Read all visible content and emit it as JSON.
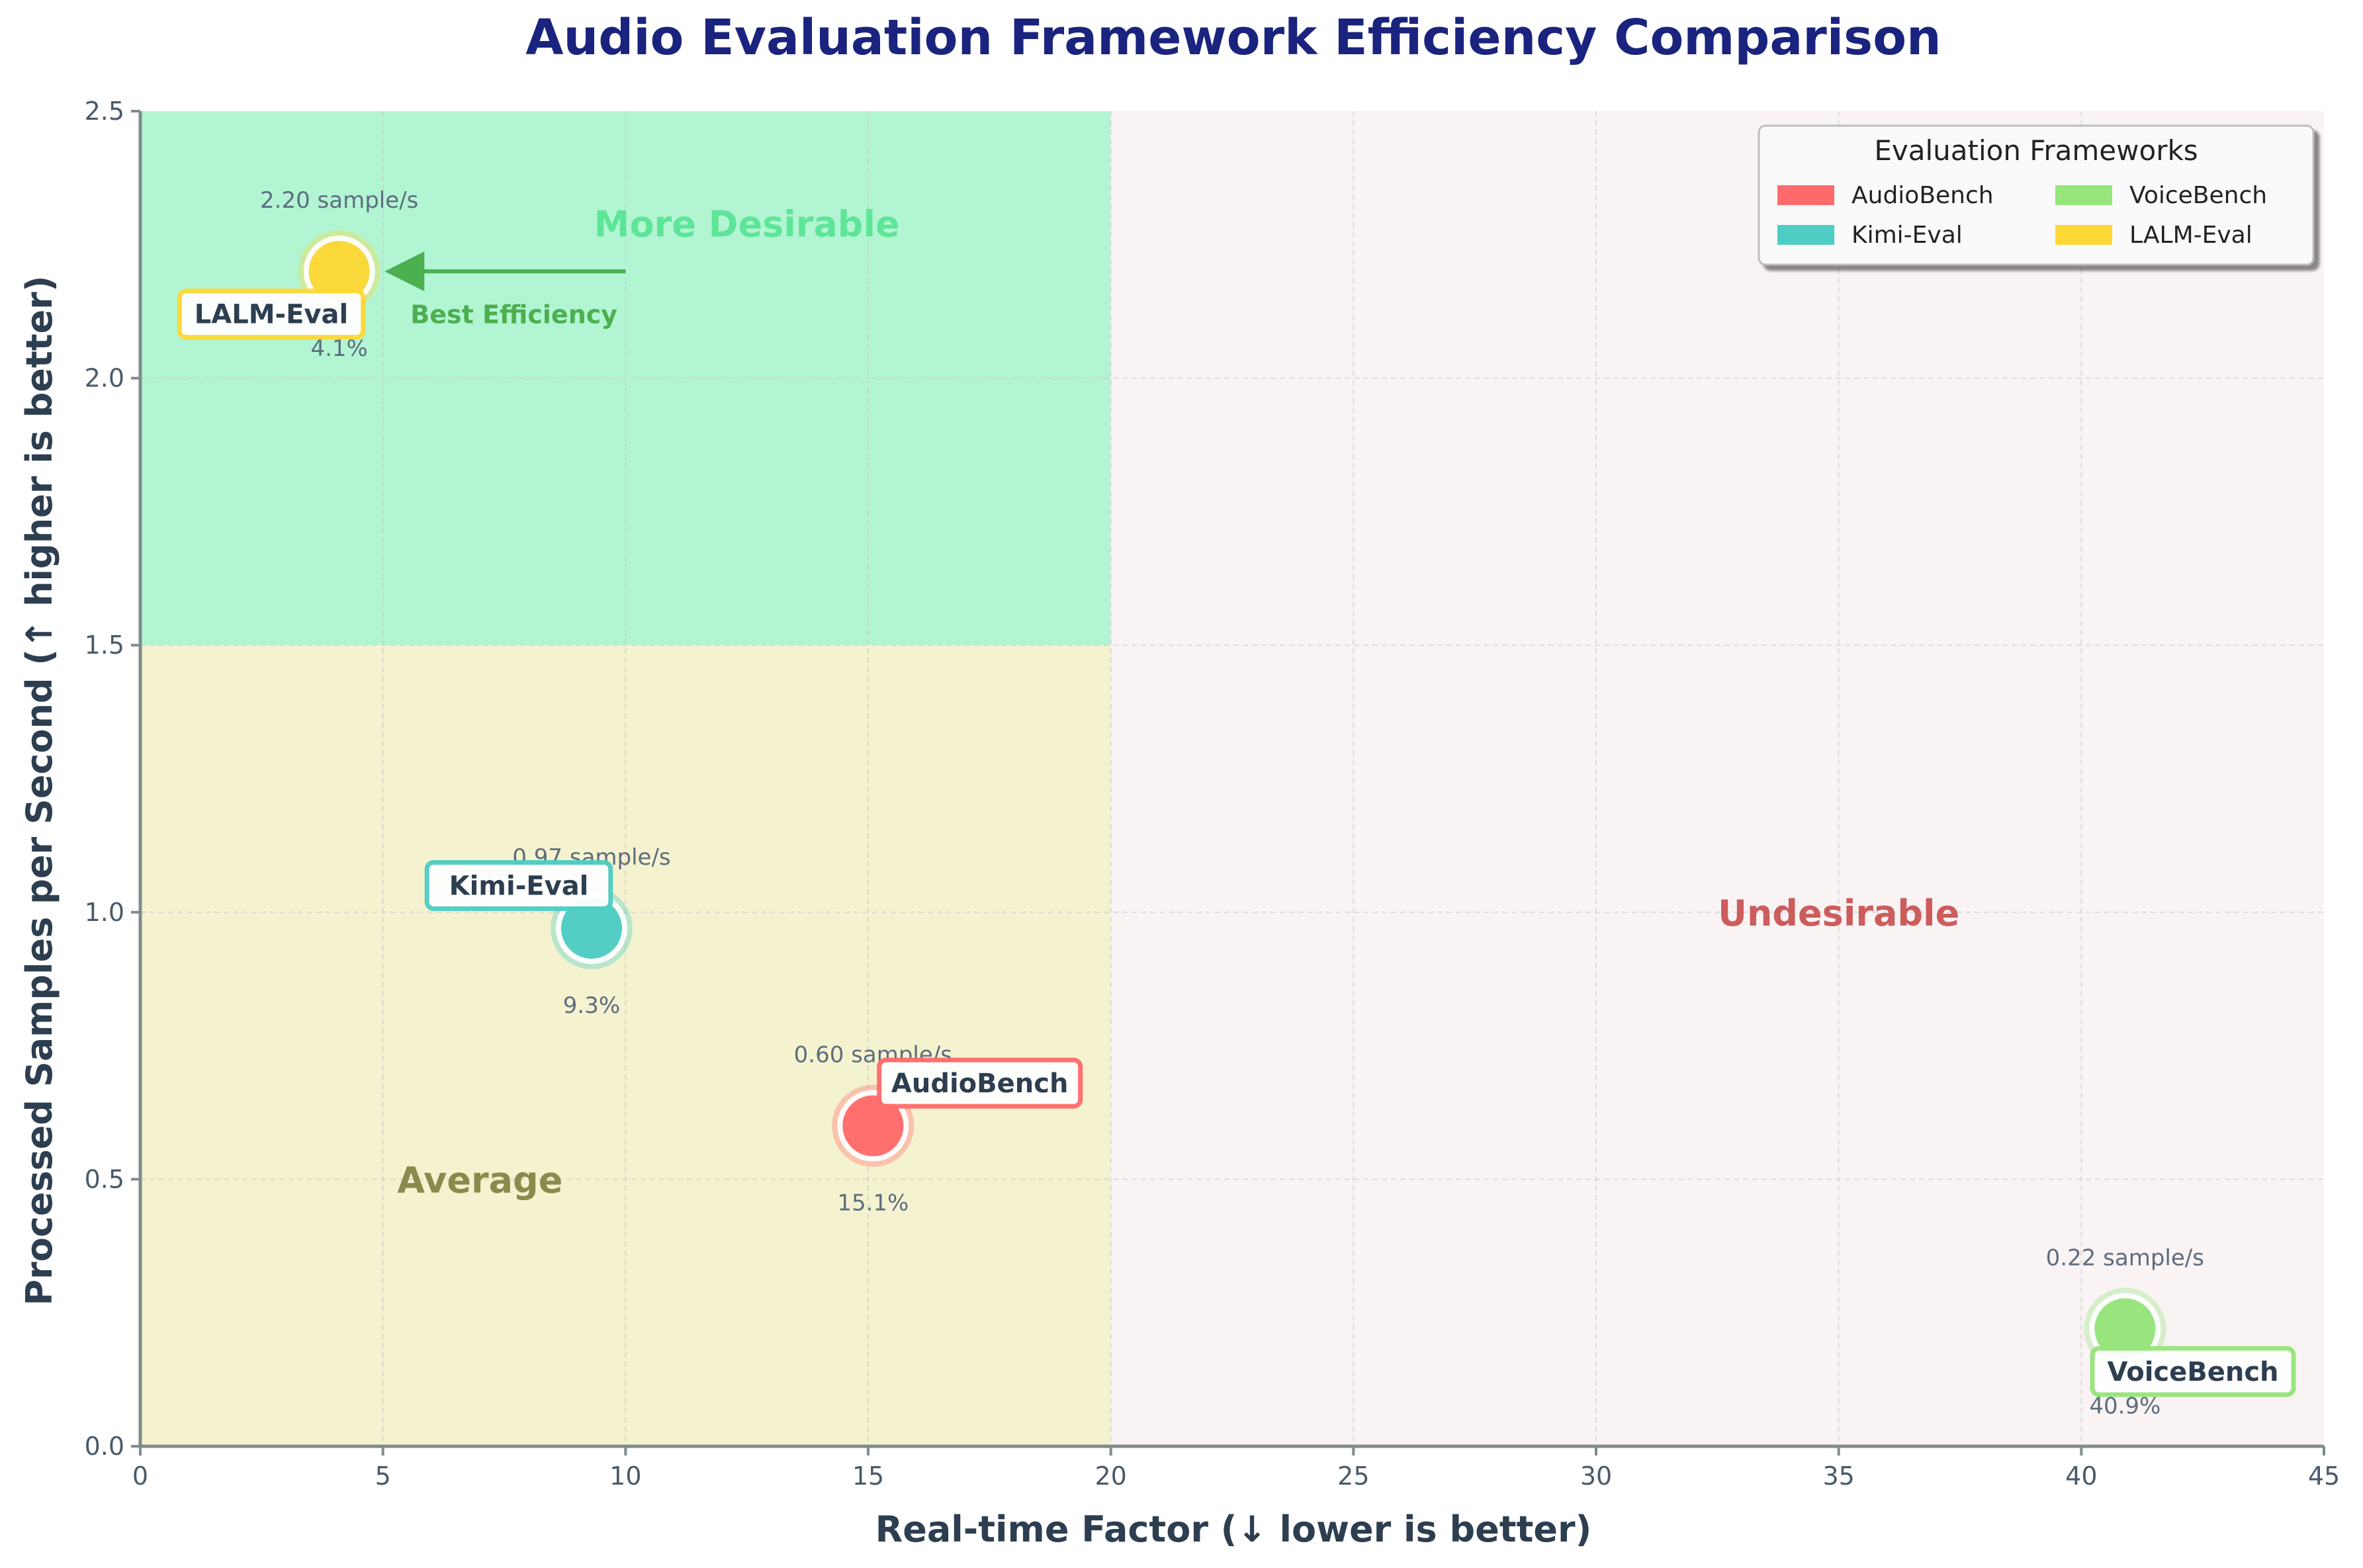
{
  "chart_data": {
    "type": "scatter",
    "title": "Audio Evaluation Framework Efficiency Comparison",
    "xlabel": "Real-time Factor (↓ lower is better)",
    "ylabel": "Processed Samples per Second (↑ higher is better)",
    "xlim": [
      0,
      45
    ],
    "ylim": [
      0,
      2.5
    ],
    "xticks": [
      0,
      5,
      10,
      15,
      20,
      25,
      30,
      35,
      40,
      45
    ],
    "yticks": [
      0.0,
      0.5,
      1.0,
      1.5,
      2.0,
      2.5
    ],
    "grid": true,
    "legend": {
      "title": "Evaluation Frameworks",
      "placement": "top-right",
      "entries": [
        "AudioBench",
        "Kimi-Eval",
        "VoiceBench",
        "LALM-Eval"
      ]
    },
    "regions": [
      {
        "label": "More Desirable",
        "x_range": [
          0,
          20
        ],
        "y_range": [
          1.5,
          2.5
        ],
        "color": "#b2f5d3",
        "label_color": "#5ee598"
      },
      {
        "label": "Average",
        "x_range": [
          0,
          20
        ],
        "y_range": [
          0,
          1.5
        ],
        "color": "#f5f2cf",
        "label_color": "#8a8a4c"
      },
      {
        "label": "Undesirable",
        "x_range": [
          20,
          45
        ],
        "y_range": [
          0,
          2.5
        ],
        "color": "#f9f3f4",
        "label_color": "#cd5c5c"
      }
    ],
    "region_label_positions": [
      {
        "label": "More Desirable",
        "x": 12.5,
        "y": 2.29
      },
      {
        "label": "Average",
        "x": 7,
        "y": 0.5
      },
      {
        "label": "Undesirable",
        "x": 35,
        "y": 1.0
      }
    ],
    "annotation": {
      "text": "Best Efficiency",
      "color": "#4caf50",
      "arrow_from": [
        10,
        2.2
      ],
      "arrow_to": [
        5.2,
        2.2
      ],
      "text_at": [
        7.7,
        2.12
      ]
    },
    "series": [
      {
        "name": "AudioBench",
        "x": 15.1,
        "y": 0.6,
        "rate_label": "0.60 sample/s",
        "pct_label": "15.1%",
        "color": "#ff6b6b"
      },
      {
        "name": "Kimi-Eval",
        "x": 9.3,
        "y": 0.97,
        "rate_label": "0.97 sample/s",
        "pct_label": "9.3%",
        "color": "#4ecdc4"
      },
      {
        "name": "VoiceBench",
        "x": 40.9,
        "y": 0.22,
        "rate_label": "0.22 sample/s",
        "pct_label": "40.9%",
        "color": "#95e57a"
      },
      {
        "name": "LALM-Eval",
        "x": 4.1,
        "y": 2.2,
        "rate_label": "2.20 sample/s",
        "pct_label": "4.1%",
        "color": "#fdd835"
      }
    ],
    "point_label_offsets": [
      {
        "name": "AudioBench",
        "dx": 2.2,
        "dy": 0.08
      },
      {
        "name": "Kimi-Eval",
        "dx": -1.5,
        "dy": 0.08
      },
      {
        "name": "VoiceBench",
        "dx": 1.4,
        "dy": -0.08
      },
      {
        "name": "LALM-Eval",
        "dx": -1.4,
        "dy": -0.08
      }
    ]
  }
}
